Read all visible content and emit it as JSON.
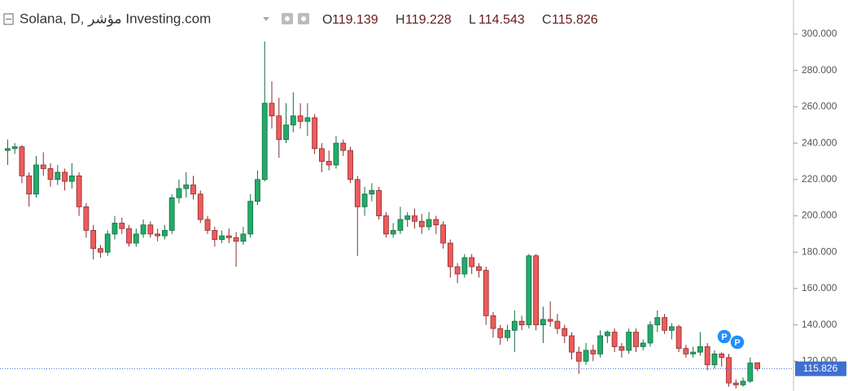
{
  "chart_data": {
    "type": "candlestick",
    "title": "Solana, D, مؤشر Investing.com",
    "ohlc_labels": [
      "O",
      "H",
      "L",
      "C"
    ],
    "up_color": "#22ab6a",
    "down_color": "#ee5b5b",
    "ylim": [
      103.6,
      318.8
    ],
    "yticks": [
      {
        "value": 120,
        "label": "120.000"
      },
      {
        "value": 140,
        "label": "140.000"
      },
      {
        "value": 160,
        "label": "160.000"
      },
      {
        "value": 180,
        "label": "180.000"
      },
      {
        "value": 200,
        "label": "200.000"
      },
      {
        "value": 220,
        "label": "220.000"
      },
      {
        "value": 240,
        "label": "240.000"
      },
      {
        "value": 260,
        "label": "260.000"
      },
      {
        "value": 280,
        "label": "280.000"
      },
      {
        "value": 300,
        "label": "300.000"
      }
    ],
    "event_markers": [
      {
        "label": "P"
      },
      {
        "label": "P"
      }
    ],
    "candles": [
      [
        236,
        242,
        228,
        237
      ],
      [
        237,
        240,
        234,
        238
      ],
      [
        238,
        239,
        218,
        222
      ],
      [
        222,
        224,
        205,
        212
      ],
      [
        212,
        233,
        210,
        228
      ],
      [
        228,
        235,
        222,
        226
      ],
      [
        226,
        229,
        216,
        220
      ],
      [
        220,
        228,
        217,
        224
      ],
      [
        224,
        226,
        214,
        219
      ],
      [
        219,
        229,
        215,
        222
      ],
      [
        222,
        224,
        200,
        205
      ],
      [
        205,
        207,
        188,
        192
      ],
      [
        192,
        195,
        176,
        182
      ],
      [
        182,
        184,
        177,
        180
      ],
      [
        180,
        192,
        178,
        190
      ],
      [
        190,
        200,
        187,
        196
      ],
      [
        196,
        199,
        190,
        193
      ],
      [
        193,
        195,
        183,
        185
      ],
      [
        185,
        193,
        183,
        190
      ],
      [
        190,
        198,
        188,
        195
      ],
      [
        195,
        197,
        188,
        190
      ],
      [
        190,
        193,
        186,
        189
      ],
      [
        189,
        195,
        187,
        192
      ],
      [
        192,
        212,
        190,
        210
      ],
      [
        210,
        220,
        207,
        215
      ],
      [
        215,
        224,
        210,
        217
      ],
      [
        217,
        222,
        209,
        212
      ],
      [
        212,
        214,
        196,
        198
      ],
      [
        198,
        200,
        190,
        192
      ],
      [
        192,
        194,
        183,
        187
      ],
      [
        187,
        192,
        185,
        189
      ],
      [
        189,
        193,
        185,
        188
      ],
      [
        188,
        191,
        172,
        186
      ],
      [
        186,
        194,
        184,
        190
      ],
      [
        190,
        212,
        188,
        208
      ],
      [
        208,
        225,
        206,
        220
      ],
      [
        220,
        296,
        219,
        262
      ],
      [
        262,
        274,
        248,
        255
      ],
      [
        255,
        265,
        232,
        242
      ],
      [
        242,
        262,
        240,
        250
      ],
      [
        250,
        268,
        246,
        255
      ],
      [
        255,
        262,
        248,
        252
      ],
      [
        252,
        262,
        244,
        254
      ],
      [
        254,
        256,
        234,
        237
      ],
      [
        237,
        240,
        224,
        230
      ],
      [
        230,
        236,
        225,
        228
      ],
      [
        228,
        244,
        226,
        240
      ],
      [
        240,
        242,
        233,
        236
      ],
      [
        236,
        238,
        218,
        220
      ],
      [
        220,
        222,
        178,
        205
      ],
      [
        205,
        216,
        200,
        212
      ],
      [
        212,
        218,
        208,
        214
      ],
      [
        214,
        216,
        198,
        200
      ],
      [
        200,
        202,
        188,
        190
      ],
      [
        190,
        196,
        188,
        192
      ],
      [
        192,
        205,
        190,
        198
      ],
      [
        198,
        202,
        194,
        200
      ],
      [
        200,
        204,
        193,
        197
      ],
      [
        197,
        201,
        190,
        194
      ],
      [
        194,
        202,
        192,
        198
      ],
      [
        198,
        200,
        190,
        195
      ],
      [
        195,
        197,
        182,
        185
      ],
      [
        185,
        187,
        166,
        172
      ],
      [
        172,
        174,
        163,
        168
      ],
      [
        168,
        179,
        166,
        177
      ],
      [
        177,
        179,
        168,
        172
      ],
      [
        172,
        174,
        166,
        170
      ],
      [
        170,
        172,
        140,
        145
      ],
      [
        145,
        147,
        133,
        138
      ],
      [
        138,
        140,
        129,
        133
      ],
      [
        133,
        140,
        131,
        137
      ],
      [
        137,
        148,
        125,
        142
      ],
      [
        142,
        145,
        137,
        140
      ],
      [
        140,
        179,
        138,
        178
      ],
      [
        178,
        179,
        137,
        140
      ],
      [
        140,
        150,
        130,
        143
      ],
      [
        143,
        153,
        139,
        142
      ],
      [
        142,
        146,
        135,
        138
      ],
      [
        138,
        140,
        130,
        134
      ],
      [
        134,
        136,
        121,
        125
      ],
      [
        125,
        128,
        113,
        120
      ],
      [
        120,
        130,
        118,
        126
      ],
      [
        126,
        129,
        120,
        124
      ],
      [
        124,
        137,
        122,
        134
      ],
      [
        134,
        137,
        130,
        136
      ],
      [
        136,
        138,
        125,
        128
      ],
      [
        128,
        130,
        122,
        126
      ],
      [
        126,
        138,
        124,
        136
      ],
      [
        136,
        138,
        125,
        128
      ],
      [
        128,
        132,
        126,
        130
      ],
      [
        130,
        142,
        128,
        140
      ],
      [
        140,
        148,
        136,
        144
      ],
      [
        144,
        146,
        135,
        137
      ],
      [
        137,
        141,
        132,
        139
      ],
      [
        139,
        140,
        125,
        127
      ],
      [
        127,
        129,
        122,
        124
      ],
      [
        124,
        128,
        122,
        125
      ],
      [
        125,
        136,
        123,
        128
      ],
      [
        128,
        130,
        115,
        118
      ],
      [
        118,
        126,
        116,
        124
      ],
      [
        124,
        125,
        117,
        122
      ],
      [
        122,
        124,
        106,
        108
      ],
      [
        108,
        110,
        105,
        107
      ],
      [
        107,
        111,
        106,
        109
      ],
      [
        109,
        122,
        108,
        119
      ],
      [
        119.139,
        119.228,
        114.543,
        115.826
      ]
    ]
  }
}
